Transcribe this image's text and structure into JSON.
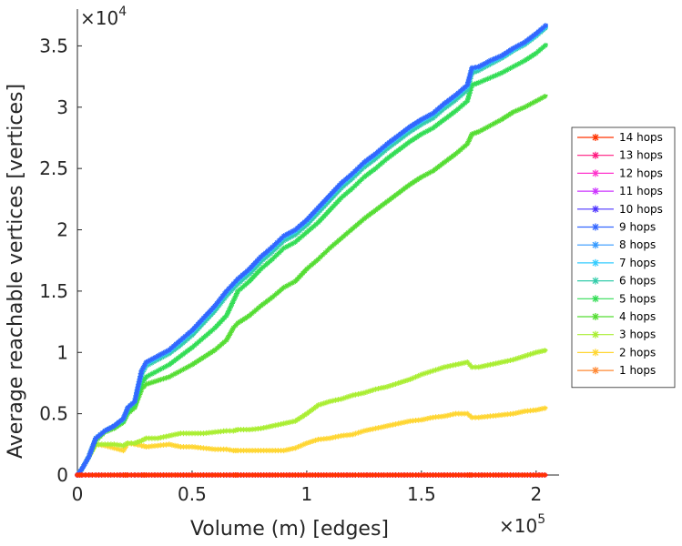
{
  "chart_data": {
    "type": "line",
    "xlabel": "Volume (m) [edges]",
    "ylabel": "Average reachable vertices [vertices]",
    "x_multiplier": "×10",
    "x_exponent": "5",
    "y_multiplier": "×10",
    "y_exponent": "4",
    "xlim": [
      0,
      2.1
    ],
    "ylim": [
      0,
      3.8
    ],
    "x_ticks": [
      0,
      0.5,
      1,
      1.5,
      2
    ],
    "x_tick_labels": [
      "0",
      "0.5",
      "1",
      "1.5",
      "2"
    ],
    "y_ticks": [
      0,
      0.5,
      1,
      1.5,
      2,
      2.5,
      3,
      3.5
    ],
    "y_tick_labels": [
      "0",
      "0.5",
      "1",
      "1.5",
      "2",
      "2.5",
      "3",
      "3.5"
    ],
    "legend_position": "right",
    "x": [
      0.0,
      0.02,
      0.05,
      0.08,
      0.12,
      0.16,
      0.2,
      0.22,
      0.25,
      0.28,
      0.3,
      0.35,
      0.4,
      0.45,
      0.5,
      0.55,
      0.6,
      0.65,
      0.68,
      0.7,
      0.75,
      0.8,
      0.85,
      0.9,
      0.95,
      1.0,
      1.05,
      1.1,
      1.15,
      1.2,
      1.25,
      1.3,
      1.35,
      1.4,
      1.45,
      1.5,
      1.55,
      1.6,
      1.65,
      1.7,
      1.72,
      1.75,
      1.8,
      1.85,
      1.9,
      1.95,
      2.0,
      2.05
    ],
    "series": [
      {
        "name": "14 hops",
        "color": "#ff3300",
        "values": [
          0,
          0,
          0,
          0,
          0,
          0,
          0,
          0,
          0,
          0,
          0,
          0,
          0,
          0,
          0,
          0,
          0,
          0,
          0,
          0,
          0,
          0,
          0,
          0,
          0,
          0,
          0,
          0,
          0,
          0,
          0,
          0,
          0,
          0,
          0,
          0,
          0,
          0,
          0,
          0,
          0,
          0,
          0,
          0,
          0,
          0,
          0,
          0
        ]
      },
      {
        "name": "13 hops",
        "color": "#ff1a80",
        "values": [
          0,
          0,
          0,
          0,
          0,
          0,
          0,
          0,
          0,
          0,
          0,
          0,
          0,
          0,
          0,
          0,
          0,
          0,
          0,
          0,
          0,
          0,
          0,
          0,
          0,
          0,
          0,
          0,
          0,
          0,
          0,
          0,
          0,
          0,
          0,
          0,
          0,
          0,
          0,
          0,
          0,
          0,
          0,
          0,
          0,
          0,
          0,
          0
        ]
      },
      {
        "name": "12 hops",
        "color": "#ff33cc",
        "values": [
          0,
          0,
          0,
          0,
          0,
          0,
          0,
          0,
          0,
          0,
          0,
          0,
          0,
          0,
          0,
          0,
          0,
          0,
          0,
          0,
          0,
          0,
          0,
          0,
          0,
          0,
          0,
          0,
          0,
          0,
          0,
          0,
          0,
          0,
          0,
          0,
          0,
          0,
          0,
          0,
          0,
          0,
          0,
          0,
          0,
          0,
          0,
          0
        ]
      },
      {
        "name": "11 hops",
        "color": "#cc33ff",
        "values": [
          0,
          0,
          0,
          0,
          0,
          0,
          0,
          0,
          0,
          0,
          0,
          0,
          0,
          0,
          0,
          0,
          0,
          0,
          0,
          0,
          0,
          0,
          0,
          0,
          0,
          0,
          0,
          0,
          0,
          0,
          0,
          0,
          0,
          0,
          0,
          0,
          0,
          0,
          0,
          0,
          0,
          0,
          0,
          0,
          0,
          0,
          0,
          0
        ]
      },
      {
        "name": "10 hops",
        "color": "#4d33ff",
        "values": [
          0,
          0,
          0,
          0,
          0,
          0,
          0,
          0,
          0,
          0,
          0,
          0,
          0,
          0,
          0,
          0,
          0,
          0,
          0,
          0,
          0,
          0,
          0,
          0,
          0,
          0,
          0,
          0,
          0,
          0,
          0,
          0,
          0,
          0,
          0,
          0,
          0,
          0,
          0,
          0,
          0,
          0,
          0,
          0,
          0,
          0,
          0,
          0
        ]
      },
      {
        "name": "9 hops",
        "color": "#3366ff",
        "values": [
          0.0,
          0.05,
          0.15,
          0.3,
          0.36,
          0.4,
          0.46,
          0.55,
          0.6,
          0.85,
          0.92,
          0.97,
          1.02,
          1.1,
          1.18,
          1.28,
          1.38,
          1.5,
          1.56,
          1.6,
          1.68,
          1.78,
          1.86,
          1.95,
          2.0,
          2.08,
          2.18,
          2.28,
          2.38,
          2.46,
          2.55,
          2.62,
          2.7,
          2.77,
          2.84,
          2.9,
          2.95,
          3.03,
          3.1,
          3.18,
          3.32,
          3.33,
          3.38,
          3.42,
          3.48,
          3.53,
          3.6,
          3.68
        ]
      },
      {
        "name": "8 hops",
        "color": "#3399ff",
        "values": [
          0.0,
          0.05,
          0.15,
          0.3,
          0.36,
          0.4,
          0.46,
          0.55,
          0.6,
          0.85,
          0.92,
          0.97,
          1.02,
          1.1,
          1.18,
          1.28,
          1.38,
          1.5,
          1.56,
          1.6,
          1.68,
          1.78,
          1.86,
          1.95,
          2.0,
          2.08,
          2.18,
          2.28,
          2.38,
          2.46,
          2.55,
          2.62,
          2.7,
          2.77,
          2.84,
          2.9,
          2.95,
          3.03,
          3.1,
          3.18,
          3.32,
          3.33,
          3.38,
          3.42,
          3.48,
          3.53,
          3.6,
          3.68
        ]
      },
      {
        "name": "7 hops",
        "color": "#33ccff",
        "values": [
          0.0,
          0.05,
          0.15,
          0.3,
          0.36,
          0.4,
          0.46,
          0.55,
          0.6,
          0.84,
          0.91,
          0.96,
          1.01,
          1.09,
          1.17,
          1.27,
          1.37,
          1.49,
          1.55,
          1.59,
          1.67,
          1.77,
          1.85,
          1.94,
          1.99,
          2.07,
          2.17,
          2.27,
          2.37,
          2.45,
          2.54,
          2.61,
          2.69,
          2.76,
          2.83,
          2.89,
          2.94,
          3.02,
          3.09,
          3.17,
          3.31,
          3.32,
          3.37,
          3.41,
          3.47,
          3.52,
          3.59,
          3.67
        ]
      },
      {
        "name": "6 hops",
        "color": "#33ccaa",
        "values": [
          0.0,
          0.05,
          0.15,
          0.3,
          0.36,
          0.4,
          0.45,
          0.54,
          0.6,
          0.82,
          0.89,
          0.94,
          0.99,
          1.06,
          1.14,
          1.24,
          1.34,
          1.46,
          1.52,
          1.56,
          1.64,
          1.74,
          1.82,
          1.91,
          1.96,
          2.04,
          2.14,
          2.24,
          2.34,
          2.42,
          2.51,
          2.58,
          2.66,
          2.73,
          2.8,
          2.86,
          2.91,
          2.99,
          3.06,
          3.14,
          3.28,
          3.3,
          3.35,
          3.4,
          3.46,
          3.51,
          3.58,
          3.66
        ]
      },
      {
        "name": "5 hops",
        "color": "#33dd55",
        "values": [
          0.0,
          0.05,
          0.15,
          0.3,
          0.36,
          0.4,
          0.44,
          0.52,
          0.58,
          0.75,
          0.8,
          0.85,
          0.9,
          0.97,
          1.04,
          1.12,
          1.2,
          1.3,
          1.42,
          1.5,
          1.58,
          1.68,
          1.76,
          1.85,
          1.9,
          1.98,
          2.06,
          2.16,
          2.26,
          2.34,
          2.43,
          2.5,
          2.58,
          2.65,
          2.72,
          2.78,
          2.83,
          2.9,
          2.97,
          3.05,
          3.18,
          3.2,
          3.24,
          3.28,
          3.33,
          3.38,
          3.44,
          3.52
        ]
      },
      {
        "name": "4 hops",
        "color": "#55dd33",
        "values": [
          0.0,
          0.05,
          0.15,
          0.28,
          0.35,
          0.38,
          0.43,
          0.5,
          0.55,
          0.7,
          0.74,
          0.77,
          0.8,
          0.85,
          0.9,
          0.96,
          1.02,
          1.1,
          1.2,
          1.24,
          1.3,
          1.38,
          1.45,
          1.53,
          1.58,
          1.68,
          1.76,
          1.85,
          1.93,
          2.01,
          2.09,
          2.16,
          2.23,
          2.3,
          2.37,
          2.43,
          2.48,
          2.55,
          2.62,
          2.7,
          2.78,
          2.8,
          2.85,
          2.9,
          2.96,
          3.0,
          3.05,
          3.1
        ]
      },
      {
        "name": "3 hops",
        "color": "#aaee33",
        "values": [
          0.0,
          0.05,
          0.15,
          0.25,
          0.25,
          0.25,
          0.24,
          0.26,
          0.26,
          0.28,
          0.3,
          0.3,
          0.32,
          0.34,
          0.34,
          0.34,
          0.35,
          0.36,
          0.36,
          0.37,
          0.37,
          0.38,
          0.4,
          0.42,
          0.44,
          0.5,
          0.57,
          0.6,
          0.62,
          0.65,
          0.67,
          0.7,
          0.72,
          0.75,
          0.78,
          0.82,
          0.85,
          0.88,
          0.9,
          0.92,
          0.88,
          0.88,
          0.9,
          0.92,
          0.94,
          0.97,
          1.0,
          1.02
        ]
      },
      {
        "name": "2 hops",
        "color": "#ffd633",
        "values": [
          0.0,
          0.05,
          0.15,
          0.25,
          0.24,
          0.22,
          0.2,
          0.26,
          0.25,
          0.24,
          0.23,
          0.24,
          0.25,
          0.23,
          0.23,
          0.22,
          0.21,
          0.21,
          0.2,
          0.2,
          0.2,
          0.2,
          0.2,
          0.2,
          0.22,
          0.26,
          0.29,
          0.3,
          0.32,
          0.33,
          0.36,
          0.38,
          0.4,
          0.42,
          0.44,
          0.45,
          0.47,
          0.48,
          0.5,
          0.5,
          0.47,
          0.47,
          0.48,
          0.49,
          0.5,
          0.52,
          0.53,
          0.55
        ]
      },
      {
        "name": "1 hops",
        "color": "#ff8833",
        "values": [
          0,
          0,
          0,
          0,
          0,
          0,
          0,
          0,
          0,
          0,
          0,
          0,
          0,
          0,
          0,
          0,
          0,
          0,
          0,
          0,
          0,
          0,
          0,
          0,
          0,
          0,
          0,
          0,
          0,
          0,
          0,
          0,
          0,
          0,
          0,
          0,
          0,
          0,
          0,
          0,
          0,
          0,
          0,
          0,
          0,
          0,
          0,
          0
        ]
      }
    ]
  }
}
